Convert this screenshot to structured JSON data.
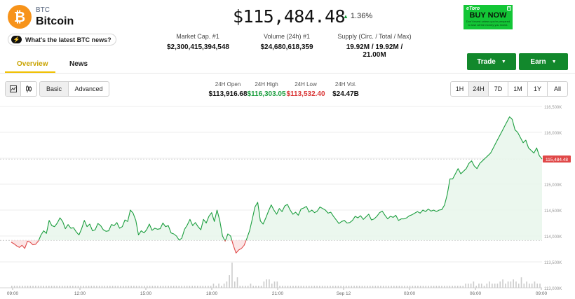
{
  "coin": {
    "symbol": "BTC",
    "name": "Bitcoin",
    "logo_icon": "bitcoin-logo-icon",
    "news_label": "What's the latest BTC news?"
  },
  "price": {
    "current": "$115,484.48",
    "change": "1.36%",
    "direction": "up",
    "up_color": "#1b9e3e"
  },
  "stats": [
    {
      "label": "Market Cap. #1",
      "value": "$2,300,415,394,548"
    },
    {
      "label": "Volume (24h) #1",
      "value": "$24,680,618,359"
    },
    {
      "label": "Supply (Circ. / Total / Max)",
      "value": "19.92M / 19.92M / 21.00M"
    }
  ],
  "ad": {
    "brand": "eToro",
    "headline": "BUY NOW",
    "fine_print": "Don't invest unless you're prepared to lose all the money you invest."
  },
  "tabs": [
    {
      "label": "Overview",
      "active": true
    },
    {
      "label": "News",
      "active": false
    }
  ],
  "actions": {
    "trade": "Trade",
    "earn": "Earn"
  },
  "view_toggle": {
    "basic": "Basic",
    "advanced": "Advanced",
    "active": "Basic"
  },
  "ohlc": [
    {
      "label": "24H Open",
      "value": "$113,916.68",
      "color": "#111111"
    },
    {
      "label": "24H High",
      "value": "$116,303.05",
      "color": "#1b9e3e"
    },
    {
      "label": "24H Low",
      "value": "$113,532.40",
      "color": "#d93434"
    },
    {
      "label": "24H Vol.",
      "value": "$24.47B",
      "color": "#111111"
    }
  ],
  "ranges": [
    "1H",
    "24H",
    "7D",
    "1M",
    "1Y",
    "All"
  ],
  "active_range": "24H",
  "chart_data": {
    "type": "line",
    "title": "",
    "y_ticks": [
      "116,500K",
      "116,000K",
      "115,500K",
      "115,000K",
      "114,500K",
      "114,000K",
      "113,500K",
      "113,000K"
    ],
    "x_ticks": [
      "09:00",
      "12:00",
      "15:00",
      "18:00",
      "21:00",
      "Sep 12",
      "03:00",
      "06:00",
      "09:00"
    ],
    "ylim": [
      113000,
      116500
    ],
    "baseline": 113916.68,
    "current_label": "115,484.48",
    "colors": {
      "up": "#1b9e3e",
      "down": "#e04848",
      "up_fill": "#e9f6ec",
      "down_fill": "#fbe3e3",
      "volume": "#cccccc",
      "current_tag": "#e04848"
    },
    "price_series": [
      113880,
      113850,
      113810,
      113780,
      113820,
      113760,
      113900,
      113880,
      113830,
      113840,
      113900,
      114020,
      114100,
      114050,
      114300,
      114200,
      114180,
      114250,
      114350,
      114280,
      114140,
      114220,
      114150,
      114160,
      114080,
      114020,
      114140,
      114300,
      114180,
      114230,
      114100,
      114120,
      114240,
      114200,
      114120,
      114090,
      114100,
      114220,
      114200,
      114260,
      114150,
      114180,
      114310,
      114280,
      114500,
      114440,
      114300,
      114020,
      114100,
      114060,
      114120,
      114230,
      114110,
      114150,
      114130,
      114140,
      114250,
      114180,
      114200,
      114060,
      114040,
      114000,
      113920,
      113960,
      114130,
      114210,
      114320,
      114200,
      114260,
      114180,
      114120,
      114320,
      114250,
      114380,
      114450,
      114280,
      114500,
      114300,
      114000,
      113900,
      114040,
      114000,
      113820,
      113670,
      113730,
      113760,
      113820,
      113950,
      114100,
      114320,
      114560,
      114650,
      114290,
      114230,
      114350,
      114480,
      114600,
      114500,
      114420,
      114530,
      114470,
      114580,
      114610,
      114500,
      114420,
      114460,
      114400,
      114520,
      114540,
      114570,
      114460,
      114500,
      114450,
      114480,
      114560,
      114530,
      114500,
      114440,
      114460,
      114380,
      114310,
      114240,
      114280,
      114300,
      114250,
      114260,
      114300,
      114380,
      114350,
      114390,
      114320,
      114370,
      114420,
      114310,
      114330,
      114380,
      114450,
      114480,
      114400,
      114330,
      114380,
      114360,
      114400,
      114300,
      114330,
      114330,
      114350,
      114390,
      114410,
      114440,
      114470,
      114440,
      114500,
      114470,
      114520,
      114480,
      114500,
      114470,
      114500,
      114510,
      114600,
      114800,
      115100,
      115100,
      115200,
      115300,
      115200,
      115250,
      115300,
      115400,
      115450,
      115350,
      115300,
      115400,
      115450,
      115500,
      115550,
      115600,
      115700,
      115800,
      115900,
      116000,
      116100,
      116200,
      116300,
      116250,
      116050,
      116000,
      115900,
      115800,
      115850,
      115700,
      115650,
      115600,
      115700,
      115550,
      115484
    ],
    "volume_series": [
      1,
      1,
      1,
      1,
      1,
      1,
      1,
      1,
      1,
      1,
      1,
      1,
      1,
      1,
      1,
      1,
      1,
      1,
      1,
      1,
      1,
      1,
      1,
      1,
      1,
      1,
      1,
      1,
      1,
      1,
      1,
      1,
      1,
      1,
      1,
      1,
      1,
      1,
      1,
      1,
      1,
      1,
      1,
      1,
      1,
      1,
      1,
      1,
      1,
      1,
      1,
      1,
      1,
      1,
      1,
      1,
      1,
      1,
      1,
      1,
      1,
      1,
      1,
      1,
      1,
      1,
      1,
      1,
      1,
      1,
      1,
      1,
      1,
      1,
      1,
      1,
      2,
      1,
      2,
      1,
      2,
      3,
      6,
      12,
      3,
      5,
      1,
      1,
      1,
      1,
      2,
      1,
      1,
      1,
      1,
      3,
      4,
      4,
      2,
      3,
      3,
      1,
      1,
      1,
      1,
      1,
      1,
      1,
      1,
      1,
      1,
      1,
      1,
      1,
      1,
      1,
      1,
      1,
      1,
      1,
      1,
      1,
      1,
      1,
      1,
      1,
      1,
      1,
      1,
      1,
      1,
      1,
      1,
      1,
      1,
      1,
      1,
      1,
      1,
      1,
      1,
      1,
      1,
      1,
      1,
      1,
      1,
      1,
      1,
      1,
      1,
      1,
      1,
      1,
      1,
      1,
      1,
      1,
      1,
      1,
      1,
      1,
      1,
      1,
      1,
      1,
      1,
      1,
      1,
      1,
      1,
      2,
      2,
      2,
      3,
      1,
      2,
      2,
      1,
      2,
      3,
      2,
      2,
      2,
      3,
      4,
      2,
      3,
      3,
      4,
      3,
      2,
      5,
      2,
      3,
      2,
      2,
      3,
      2,
      2
    ]
  }
}
